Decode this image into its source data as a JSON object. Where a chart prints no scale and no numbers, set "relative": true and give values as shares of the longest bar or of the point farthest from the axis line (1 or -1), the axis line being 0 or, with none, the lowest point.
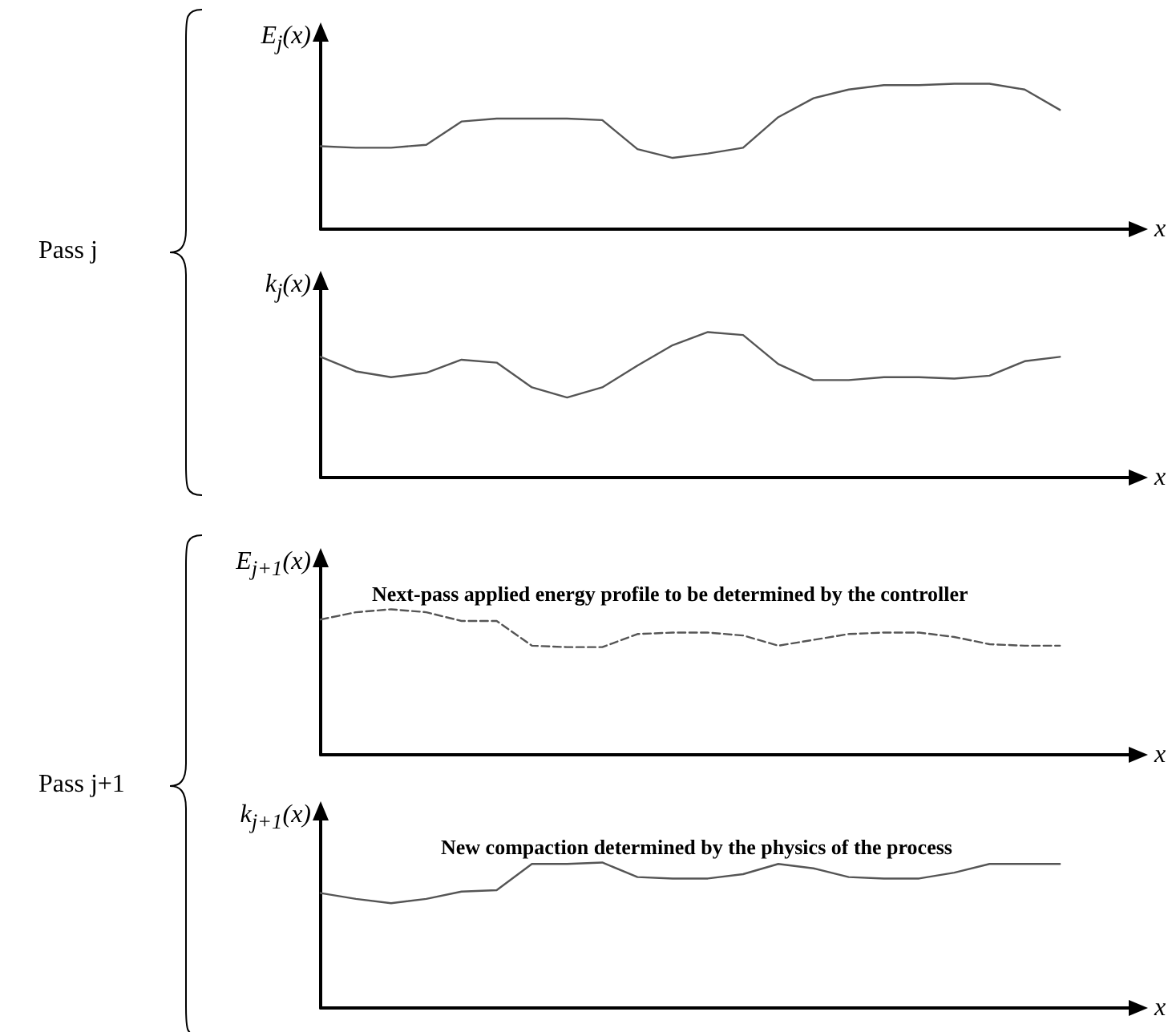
{
  "chart_data": [
    {
      "type": "line",
      "relative": true,
      "ylabel": "E$_{j}$(x)",
      "xlabel": "x",
      "tick_labels": false,
      "marker": "none",
      "line_style": "solid",
      "annotations": [
        "Pass j"
      ],
      "categories": [
        null,
        null,
        null,
        null,
        null,
        null,
        null,
        null,
        null,
        null,
        null,
        null,
        null,
        null,
        null,
        null,
        null,
        null,
        null,
        null,
        null,
        null,
        null,
        null
      ],
      "series": [
        {
          "color": "#555555",
          "values": [
            0.57,
            0.56,
            0.56,
            0.58,
            0.74,
            0.76,
            0.76,
            0.76,
            0.75,
            0.55,
            0.49,
            0.52,
            0.56,
            0.77,
            0.9,
            0.96,
            0.99,
            0.99,
            1.0,
            1.0,
            0.96,
            0.82,
            null,
            null
          ]
        }
      ]
    },
    {
      "type": "line",
      "relative": true,
      "ylabel": "k$_{j}$(x)",
      "xlabel": "x",
      "tick_labels": false,
      "marker": "none",
      "line_style": "solid",
      "categories": [
        null,
        null,
        null,
        null,
        null,
        null,
        null,
        null,
        null,
        null,
        null,
        null,
        null,
        null,
        null,
        null,
        null,
        null,
        null,
        null,
        null,
        null,
        null,
        null
      ],
      "series": [
        {
          "color": "#555555",
          "values": [
            0.83,
            0.73,
            0.69,
            0.72,
            0.81,
            0.79,
            0.62,
            0.55,
            0.62,
            0.77,
            0.91,
            1.0,
            0.98,
            0.78,
            0.67,
            0.67,
            0.69,
            0.69,
            0.68,
            0.7,
            0.8,
            0.83,
            null,
            null
          ]
        }
      ]
    },
    {
      "type": "line",
      "relative": true,
      "ylabel": "E$_{j+1}$(x)",
      "xlabel": "x",
      "tick_labels": false,
      "marker": "none",
      "line_style": "dashed",
      "annotations": [
        "Pass j+1",
        "Next-pass applied energy profile to be determined by the controller"
      ],
      "categories": [
        null,
        null,
        null,
        null,
        null,
        null,
        null,
        null,
        null,
        null,
        null,
        null,
        null,
        null,
        null,
        null,
        null,
        null,
        null,
        null,
        null,
        null,
        null,
        null
      ],
      "series": [
        {
          "color": "#555555",
          "values": [
            0.93,
            0.98,
            1.0,
            0.98,
            0.92,
            0.92,
            0.75,
            0.74,
            0.74,
            0.83,
            0.84,
            0.84,
            0.82,
            0.75,
            0.79,
            0.83,
            0.84,
            0.84,
            0.81,
            0.76,
            0.75,
            0.75,
            null,
            null
          ]
        }
      ]
    },
    {
      "type": "line",
      "relative": true,
      "ylabel": "k$_{j+1}$(x)",
      "xlabel": "x",
      "tick_labels": false,
      "marker": "none",
      "line_style": "solid",
      "annotations": [
        "New compaction determined by the physics of the process"
      ],
      "categories": [
        null,
        null,
        null,
        null,
        null,
        null,
        null,
        null,
        null,
        null,
        null,
        null,
        null,
        null,
        null,
        null,
        null,
        null,
        null,
        null,
        null,
        null,
        null,
        null
      ],
      "series": [
        {
          "color": "#555555",
          "values": [
            0.79,
            0.75,
            0.72,
            0.75,
            0.8,
            0.81,
            0.99,
            0.99,
            1.0,
            0.9,
            0.89,
            0.89,
            0.92,
            0.99,
            0.96,
            0.9,
            0.89,
            0.89,
            0.93,
            0.99,
            0.99,
            0.99,
            null,
            null
          ]
        }
      ]
    }
  ]
}
